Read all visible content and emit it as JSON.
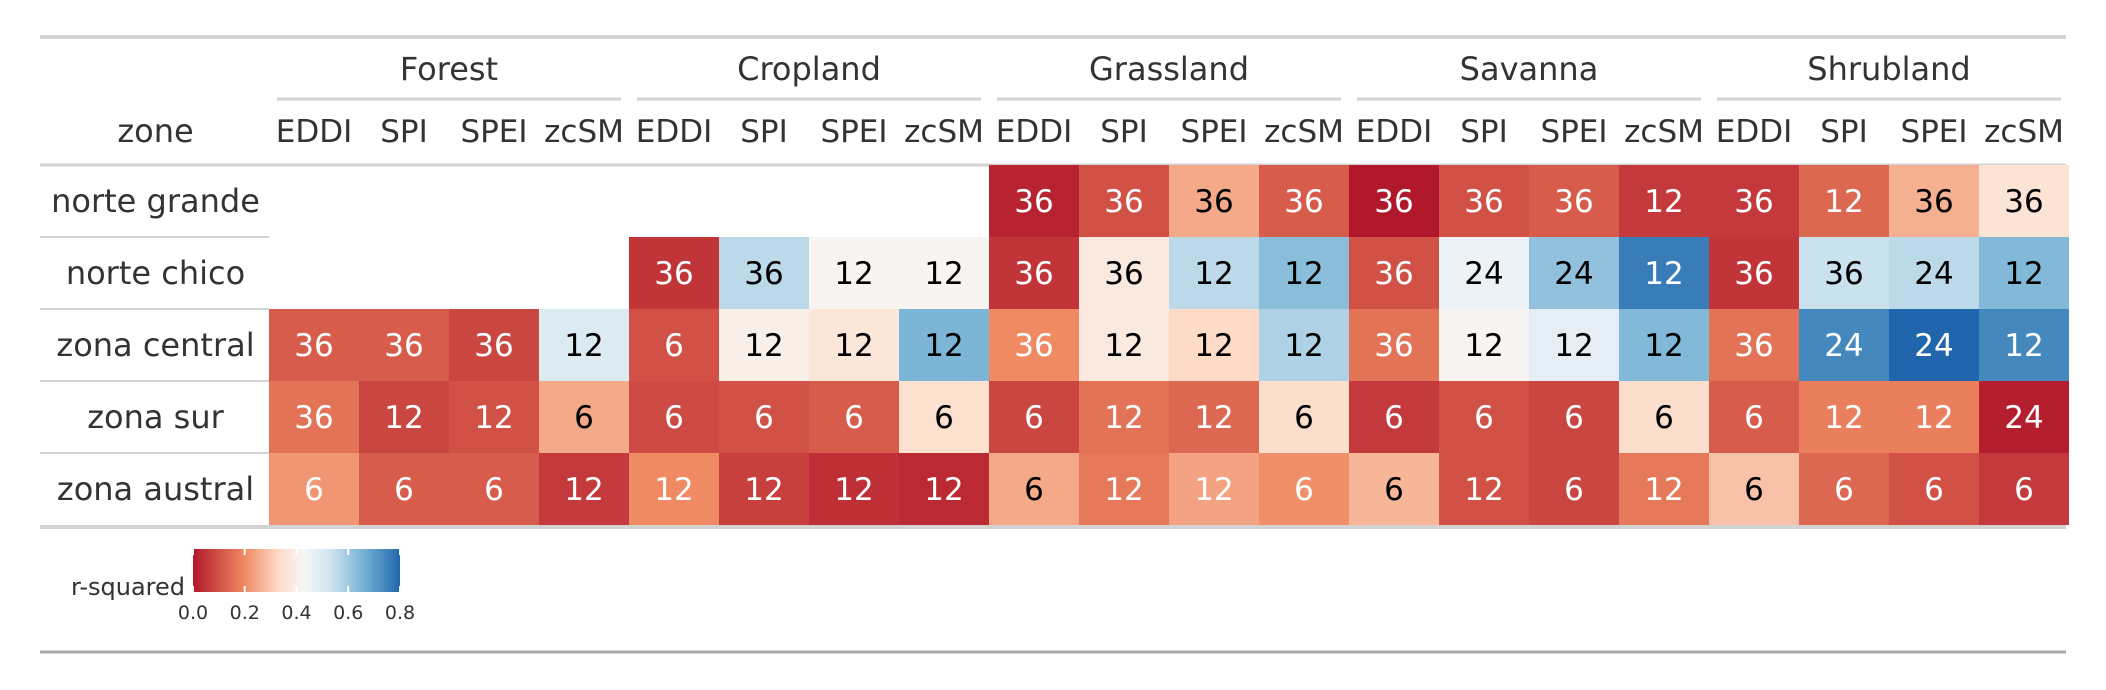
{
  "chart_data": {
    "type": "heatmap",
    "zone_header": "zone",
    "groups": [
      "Forest",
      "Cropland",
      "Grassland",
      "Savanna",
      "Shrubland"
    ],
    "indices": [
      "EDDI",
      "SPI",
      "SPEI",
      "zcSM"
    ],
    "rows": [
      "norte grande",
      "norte chico",
      "zona central",
      "zona sur",
      "zona austral"
    ],
    "values": [
      [
        null,
        null,
        null,
        null,
        null,
        null,
        null,
        null,
        36,
        36,
        36,
        36,
        36,
        36,
        36,
        12,
        36,
        12,
        36,
        36
      ],
      [
        null,
        null,
        null,
        null,
        36,
        36,
        12,
        12,
        36,
        36,
        12,
        12,
        36,
        24,
        24,
        12,
        36,
        36,
        24,
        12
      ],
      [
        36,
        36,
        36,
        12,
        6,
        12,
        12,
        12,
        36,
        12,
        12,
        12,
        36,
        12,
        12,
        12,
        36,
        24,
        24,
        12
      ],
      [
        36,
        12,
        12,
        6,
        6,
        6,
        6,
        6,
        6,
        12,
        12,
        6,
        6,
        6,
        6,
        6,
        6,
        12,
        12,
        24
      ],
      [
        6,
        6,
        6,
        12,
        12,
        12,
        12,
        12,
        6,
        12,
        12,
        6,
        6,
        12,
        6,
        12,
        6,
        6,
        6,
        6
      ]
    ],
    "r_squared": [
      [
        null,
        null,
        null,
        null,
        null,
        null,
        null,
        null,
        0.02,
        0.1,
        0.25,
        0.12,
        0.0,
        0.1,
        0.12,
        0.06,
        0.06,
        0.14,
        0.26,
        0.36
      ],
      [
        null,
        null,
        null,
        null,
        0.05,
        0.56,
        0.42,
        0.42,
        0.05,
        0.38,
        0.56,
        0.63,
        0.1,
        0.46,
        0.62,
        0.76,
        0.05,
        0.54,
        0.56,
        0.64
      ],
      [
        0.12,
        0.12,
        0.08,
        0.5,
        0.1,
        0.4,
        0.37,
        0.65,
        0.2,
        0.38,
        0.33,
        0.58,
        0.16,
        0.42,
        0.48,
        0.64,
        0.16,
        0.74,
        0.8,
        0.74
      ],
      [
        0.16,
        0.08,
        0.1,
        0.25,
        0.09,
        0.1,
        0.12,
        0.35,
        0.08,
        0.16,
        0.14,
        0.34,
        0.06,
        0.1,
        0.08,
        0.34,
        0.12,
        0.18,
        0.18,
        0.01
      ],
      [
        0.22,
        0.12,
        0.12,
        0.06,
        0.2,
        0.07,
        0.04,
        0.03,
        0.25,
        0.17,
        0.24,
        0.21,
        0.27,
        0.1,
        0.08,
        0.17,
        0.29,
        0.14,
        0.1,
        0.06
      ]
    ],
    "legend": {
      "title": "r-squared",
      "range": [
        0,
        0.8
      ],
      "ticks": [
        "0.0",
        "0.2",
        "0.4",
        "0.6",
        "0.8"
      ],
      "placement": "bottom-left"
    },
    "colors": {
      "low": "#b2182b",
      "mid_low": "#ef8a62",
      "mid_low2": "#fddbc7",
      "mid": "#f7f7f7",
      "mid_high": "#d1e5f0",
      "mid_high2": "#67a9cf",
      "high": "#2166ac",
      "rule": "#d3d3d3",
      "text_dark": "#333333",
      "cell_text_dark": "#000000",
      "cell_text_light": "#ffffff"
    }
  }
}
